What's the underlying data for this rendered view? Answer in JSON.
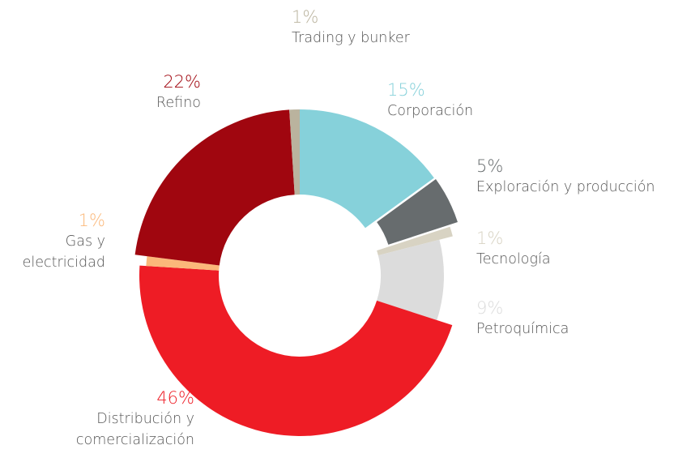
{
  "chart_data": {
    "type": "pie",
    "categories": [
      "Corporación",
      "Exploración y producción",
      "Tecnología",
      "Petroquímica",
      "Distribución y comercialización",
      "Gas y electricidad",
      "Refino",
      "Trading y bunker"
    ],
    "values": [
      15,
      5,
      1,
      9,
      46,
      1,
      22,
      1
    ],
    "value_labels": [
      "15%",
      "5%",
      "1%",
      "9%",
      "46%",
      "1%",
      "22%",
      "1%"
    ],
    "colors": [
      "#86d1da",
      "#676c6e",
      "#d8d3c3",
      "#dcdcdc",
      "#ee1c25",
      "#fbb87a",
      "#a0060f",
      "#bab39e"
    ]
  }
}
